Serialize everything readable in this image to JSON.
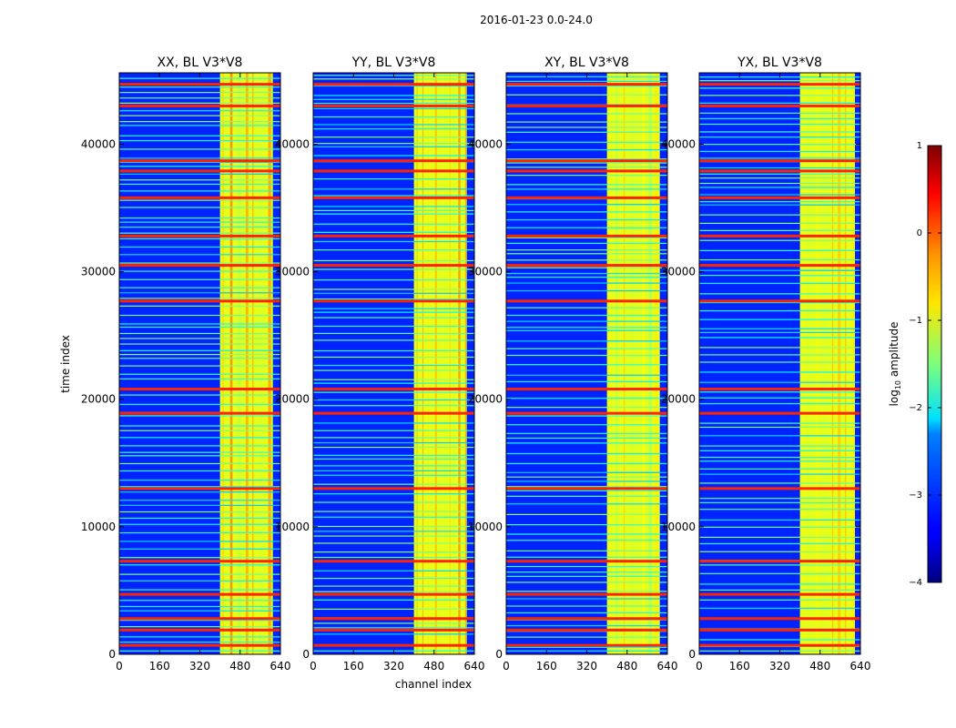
{
  "figure": {
    "suptitle": "2016-01-23 0.0-24.0",
    "xlabel": "channel index",
    "ylabel": "time index"
  },
  "chart_data": {
    "type": "heatmap",
    "panels": [
      {
        "title": "XX, BL V3*V8",
        "polarization": "XX",
        "xlim": [
          0,
          640
        ],
        "ylim": [
          0,
          45600
        ]
      },
      {
        "title": "YY, BL V3*V8",
        "polarization": "YY",
        "xlim": [
          0,
          640
        ],
        "ylim": [
          0,
          45600
        ]
      },
      {
        "title": "XY, BL V3*V8",
        "polarization": "XY",
        "xlim": [
          0,
          640
        ],
        "ylim": [
          0,
          45600
        ]
      },
      {
        "title": "YX, BL V3*V8",
        "polarization": "YX",
        "xlim": [
          0,
          640
        ],
        "ylim": [
          0,
          45600
        ]
      }
    ],
    "x_ticks": [
      0,
      160,
      320,
      480,
      640
    ],
    "x_tick_labels": [
      "0",
      "160",
      "320",
      "480",
      "640"
    ],
    "y_ticks": [
      0,
      10000,
      20000,
      30000,
      40000
    ],
    "y_tick_labels": [
      "0",
      "10000",
      "20000",
      "30000",
      "40000"
    ],
    "colorbar": {
      "label": "log10 amplitude",
      "label_main": "log",
      "label_sub": "10",
      "label_rest": " amplitude",
      "range": [
        -4,
        1
      ],
      "ticks": [
        1,
        0,
        -1,
        -2,
        -3,
        -4
      ],
      "tick_labels": [
        "1",
        "0",
        "−1",
        "−2",
        "−3",
        "−4"
      ],
      "colormap": "jet"
    },
    "features": {
      "bright_band_channels": [
        400,
        610
      ],
      "rfi_rows": [
        700,
        1900,
        2800,
        4700,
        7300,
        13000,
        18900,
        20800,
        27700,
        30500,
        32800,
        35800,
        37900,
        38700,
        43000,
        44700
      ],
      "quiet_level": -3.2,
      "band_level": -1.0,
      "rfi_level": 0.2
    }
  }
}
